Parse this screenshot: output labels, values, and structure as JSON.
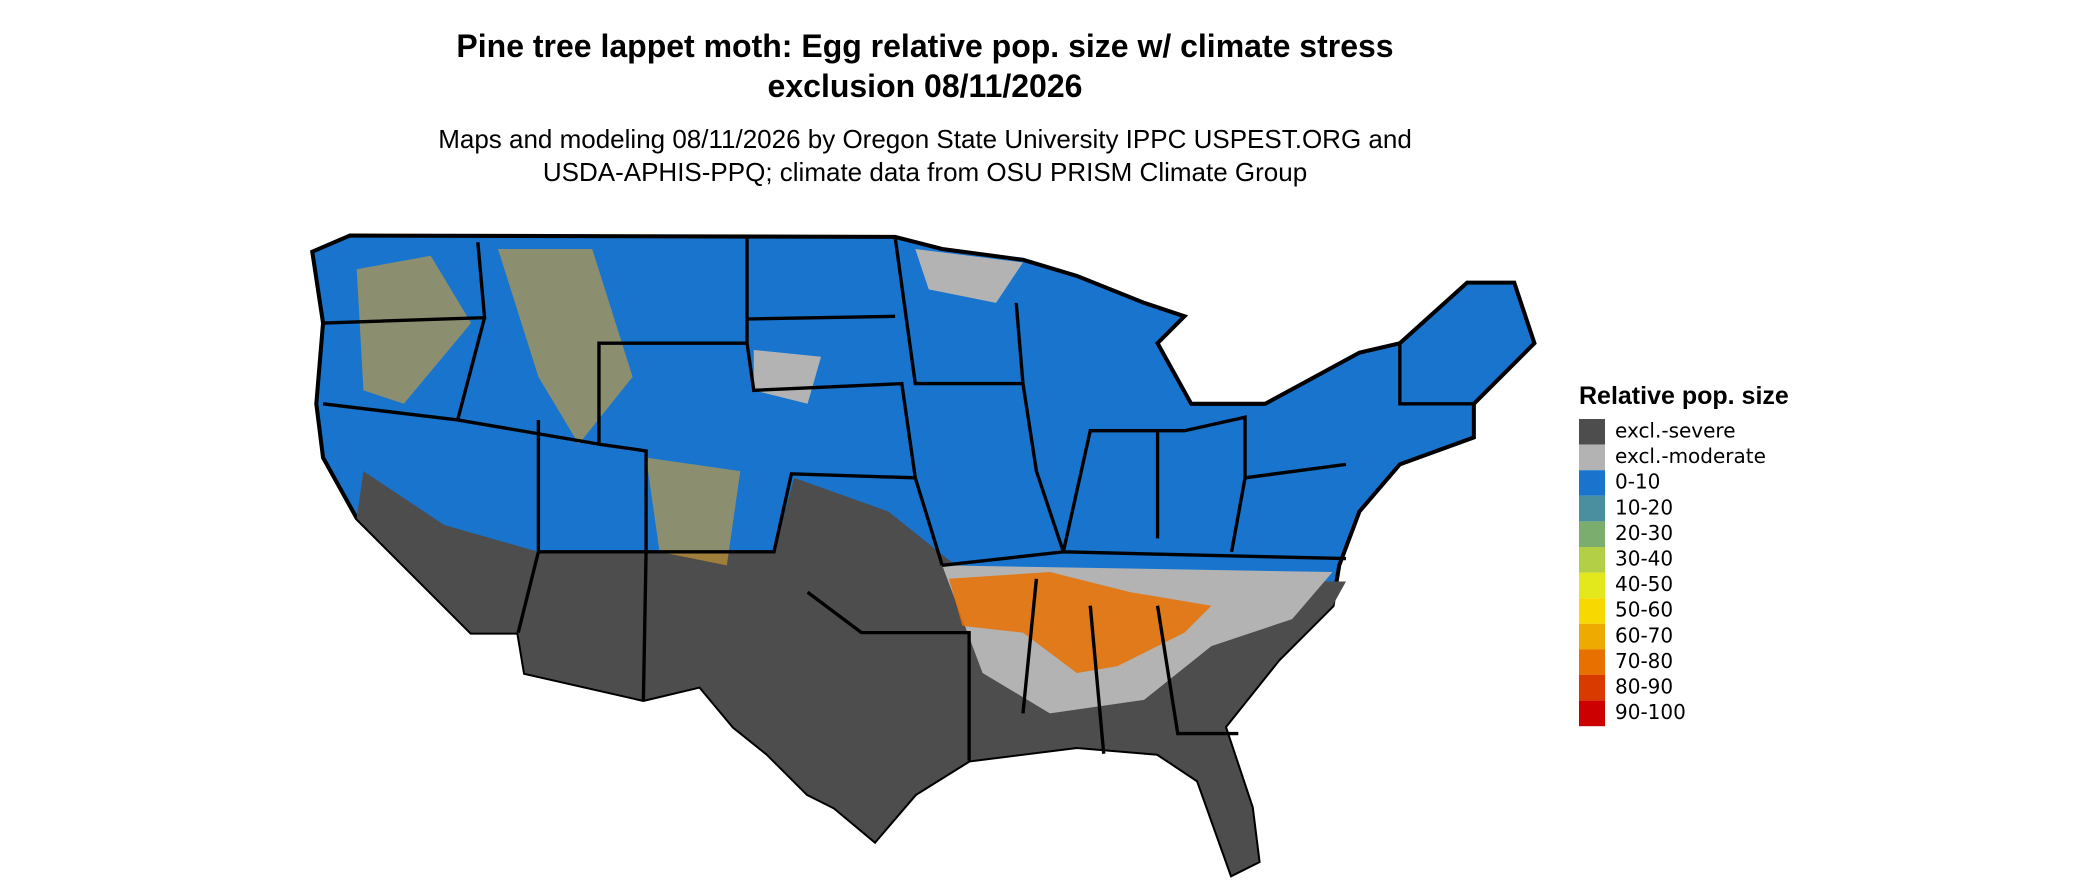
{
  "header": {
    "title_lines": [
      "Pine tree lappet moth: Egg relative pop. size w/ climate stress",
      "exclusion 08/11/2026"
    ],
    "subtitle_lines": [
      "Maps and modeling 08/11/2026 by Oregon State University IPPC USPEST.ORG and",
      "USDA-APHIS-PPQ; climate data from OSU PRISM Climate Group"
    ]
  },
  "legend": {
    "title": "Relative pop. size",
    "items": [
      {
        "label": "excl.-severe",
        "color": "#4d4d4d"
      },
      {
        "label": "excl.-moderate",
        "color": "#b3b3b3"
      },
      {
        "label": "0-10",
        "color": "#1874cd"
      },
      {
        "label": "10-20",
        "color": "#4a8fa0"
      },
      {
        "label": "20-30",
        "color": "#7aad6e"
      },
      {
        "label": "30-40",
        "color": "#b3cf45"
      },
      {
        "label": "40-50",
        "color": "#e2e81c"
      },
      {
        "label": "50-60",
        "color": "#f7d800"
      },
      {
        "label": "60-70",
        "color": "#eeaa00"
      },
      {
        "label": "70-80",
        "color": "#e87000"
      },
      {
        "label": "80-90",
        "color": "#d83a00"
      },
      {
        "label": "90-100",
        "color": "#cc0000"
      }
    ]
  }
}
